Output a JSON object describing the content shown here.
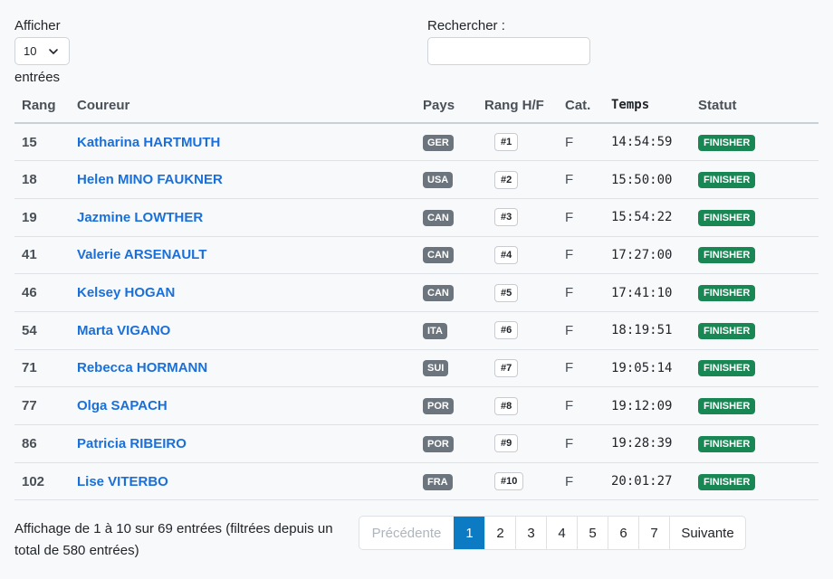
{
  "length_control": {
    "label_before": "Afficher",
    "value": "10",
    "label_after": "entrées"
  },
  "search": {
    "label": "Rechercher :",
    "value": ""
  },
  "table": {
    "columns": [
      "Rang",
      "Coureur",
      "Pays",
      "Rang H/F",
      "Cat.",
      "Temps",
      "Statut"
    ],
    "rows": [
      {
        "rank": "15",
        "name": "Katharina HARTMUTH",
        "country": "GER",
        "hf": "#1",
        "cat": "F",
        "time": "14:54:59",
        "status": "FINISHER"
      },
      {
        "rank": "18",
        "name": "Helen MINO FAUKNER",
        "country": "USA",
        "hf": "#2",
        "cat": "F",
        "time": "15:50:00",
        "status": "FINISHER"
      },
      {
        "rank": "19",
        "name": "Jazmine LOWTHER",
        "country": "CAN",
        "hf": "#3",
        "cat": "F",
        "time": "15:54:22",
        "status": "FINISHER"
      },
      {
        "rank": "41",
        "name": "Valerie ARSENAULT",
        "country": "CAN",
        "hf": "#4",
        "cat": "F",
        "time": "17:27:00",
        "status": "FINISHER"
      },
      {
        "rank": "46",
        "name": "Kelsey HOGAN",
        "country": "CAN",
        "hf": "#5",
        "cat": "F",
        "time": "17:41:10",
        "status": "FINISHER"
      },
      {
        "rank": "54",
        "name": "Marta VIGANO",
        "country": "ITA",
        "hf": "#6",
        "cat": "F",
        "time": "18:19:51",
        "status": "FINISHER"
      },
      {
        "rank": "71",
        "name": "Rebecca HORMANN",
        "country": "SUI",
        "hf": "#7",
        "cat": "F",
        "time": "19:05:14",
        "status": "FINISHER"
      },
      {
        "rank": "77",
        "name": "Olga SAPACH",
        "country": "POR",
        "hf": "#8",
        "cat": "F",
        "time": "19:12:09",
        "status": "FINISHER"
      },
      {
        "rank": "86",
        "name": "Patricia RIBEIRO",
        "country": "POR",
        "hf": "#9",
        "cat": "F",
        "time": "19:28:39",
        "status": "FINISHER"
      },
      {
        "rank": "102",
        "name": "Lise VITERBO",
        "country": "FRA",
        "hf": "#10",
        "cat": "F",
        "time": "20:01:27",
        "status": "FINISHER"
      }
    ]
  },
  "info": {
    "text": "Affichage de 1 à 10 sur 69 entrées (filtrées depuis un total de 580 entrées)"
  },
  "pagination": {
    "prev": "Précédente",
    "pages": [
      "1",
      "2",
      "3",
      "4",
      "5",
      "6",
      "7"
    ],
    "active": "1",
    "next": "Suivante"
  },
  "colors": {
    "link": "#1a6fd8",
    "country_badge": "#6c757d",
    "status_badge": "#198754",
    "active_page": "#0d7bc4"
  },
  "icons": {
    "select_arrow": "chevron-down-icon"
  }
}
